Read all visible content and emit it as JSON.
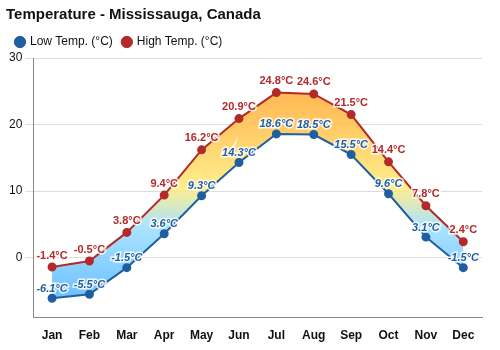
{
  "chart_data": {
    "type": "line",
    "title": "Temperature - Mississauga, Canada",
    "categories": [
      "Jan",
      "Feb",
      "Mar",
      "Apr",
      "May",
      "Jun",
      "Jul",
      "Aug",
      "Sep",
      "Oct",
      "Nov",
      "Dec"
    ],
    "series": [
      {
        "name": "Low Temp. (°C)",
        "color": "#1f5fa0",
        "marker": "circle",
        "line_style": "solid",
        "values": [
          -6.1,
          -5.5,
          -1.5,
          3.6,
          9.3,
          14.3,
          18.6,
          18.5,
          15.5,
          9.6,
          3.1,
          -1.5
        ],
        "value_labels": [
          "-6.1°C",
          "-5.5°C",
          "-1.5°C",
          "3.6°C",
          "9.3°C",
          "14.3°C",
          "18.6°C",
          "18.5°C",
          "15.5°C",
          "9.6°C",
          "3.1°C",
          "-1.5°C"
        ]
      },
      {
        "name": "High Temp. (°C)",
        "color": "#b22a2a",
        "marker": "circle",
        "line_style": "solid",
        "values": [
          -1.4,
          -0.5,
          3.8,
          9.4,
          16.2,
          20.9,
          24.8,
          24.6,
          21.5,
          14.4,
          7.8,
          2.4
        ],
        "value_labels": [
          "-1.4°C",
          "-0.5°C",
          "3.8°C",
          "9.4°C",
          "16.2°C",
          "20.9°C",
          "24.8°C",
          "24.6°C",
          "21.5°C",
          "14.4°C",
          "7.8°C",
          "2.4°C"
        ]
      }
    ],
    "ylim": [
      -9,
      30
    ],
    "yticks": [
      0,
      10,
      20,
      30
    ],
    "grid": true,
    "legend": "top-left",
    "data_labels": true
  }
}
